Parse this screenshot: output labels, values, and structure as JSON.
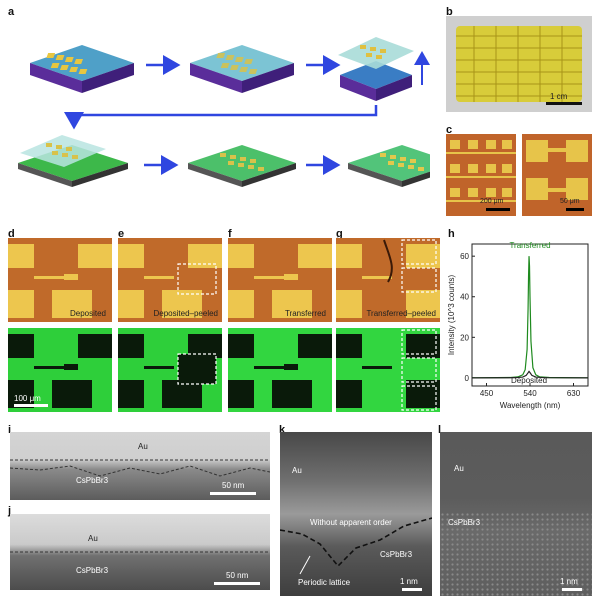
{
  "panels": {
    "a": "a",
    "b": "b",
    "c": "c",
    "d": "d",
    "e": "e",
    "f": "f",
    "g": "g",
    "h": "h",
    "i": "i",
    "j": "j",
    "k": "k",
    "l": "l"
  },
  "panel_b": {
    "scale": "1 cm"
  },
  "panel_c": {
    "scale_left": "200 μm",
    "scale_right": "50 μm"
  },
  "optical_row": {
    "d": "Deposited",
    "e": "Deposited–peeled",
    "f": "Transferred",
    "g": "Transferred–peeled",
    "scale": "100 μm"
  },
  "panel_i": {
    "top": "Au",
    "bottom": "CsPbBr3",
    "scale": "50 nm"
  },
  "panel_j": {
    "top": "Au",
    "bottom": "CsPbBr3",
    "scale": "50 nm"
  },
  "panel_k": {
    "top": "Au",
    "middle": "Without apparent order",
    "bottom": "CsPbBr3",
    "arrow": "Periodic lattice",
    "scale": "1 nm"
  },
  "panel_l": {
    "top": "Au",
    "bottom": "CsPbBr3",
    "scale": "1 nm"
  },
  "chart_data": {
    "type": "line",
    "xlabel": "Wavelength (nm)",
    "ylabel": "Intensity (10^3 counts)",
    "xlim": [
      420,
      660
    ],
    "ylim": [
      -4,
      66
    ],
    "xticks": [
      "450",
      "540",
      "630"
    ],
    "yticks": [
      "0",
      "20",
      "40",
      "60"
    ],
    "series": [
      {
        "name": "Transferred",
        "color": "#1e8a1e",
        "x": [
          420,
          500,
          515,
          525,
          530,
          534,
          536,
          537,
          538,
          539,
          540,
          542,
          546,
          552,
          560,
          580,
          660
        ],
        "y": [
          0,
          0.2,
          0.5,
          1.5,
          4,
          14,
          34,
          50,
          60,
          55,
          40,
          18,
          5,
          1.5,
          0.5,
          0.2,
          0
        ]
      },
      {
        "name": "Deposited",
        "color": "#222222",
        "x": [
          420,
          510,
          525,
          532,
          536,
          538,
          540,
          544,
          552,
          570,
          660
        ],
        "y": [
          0,
          0.1,
          0.4,
          1.2,
          2.5,
          3.2,
          2.6,
          1.2,
          0.4,
          0.1,
          0
        ]
      }
    ]
  }
}
